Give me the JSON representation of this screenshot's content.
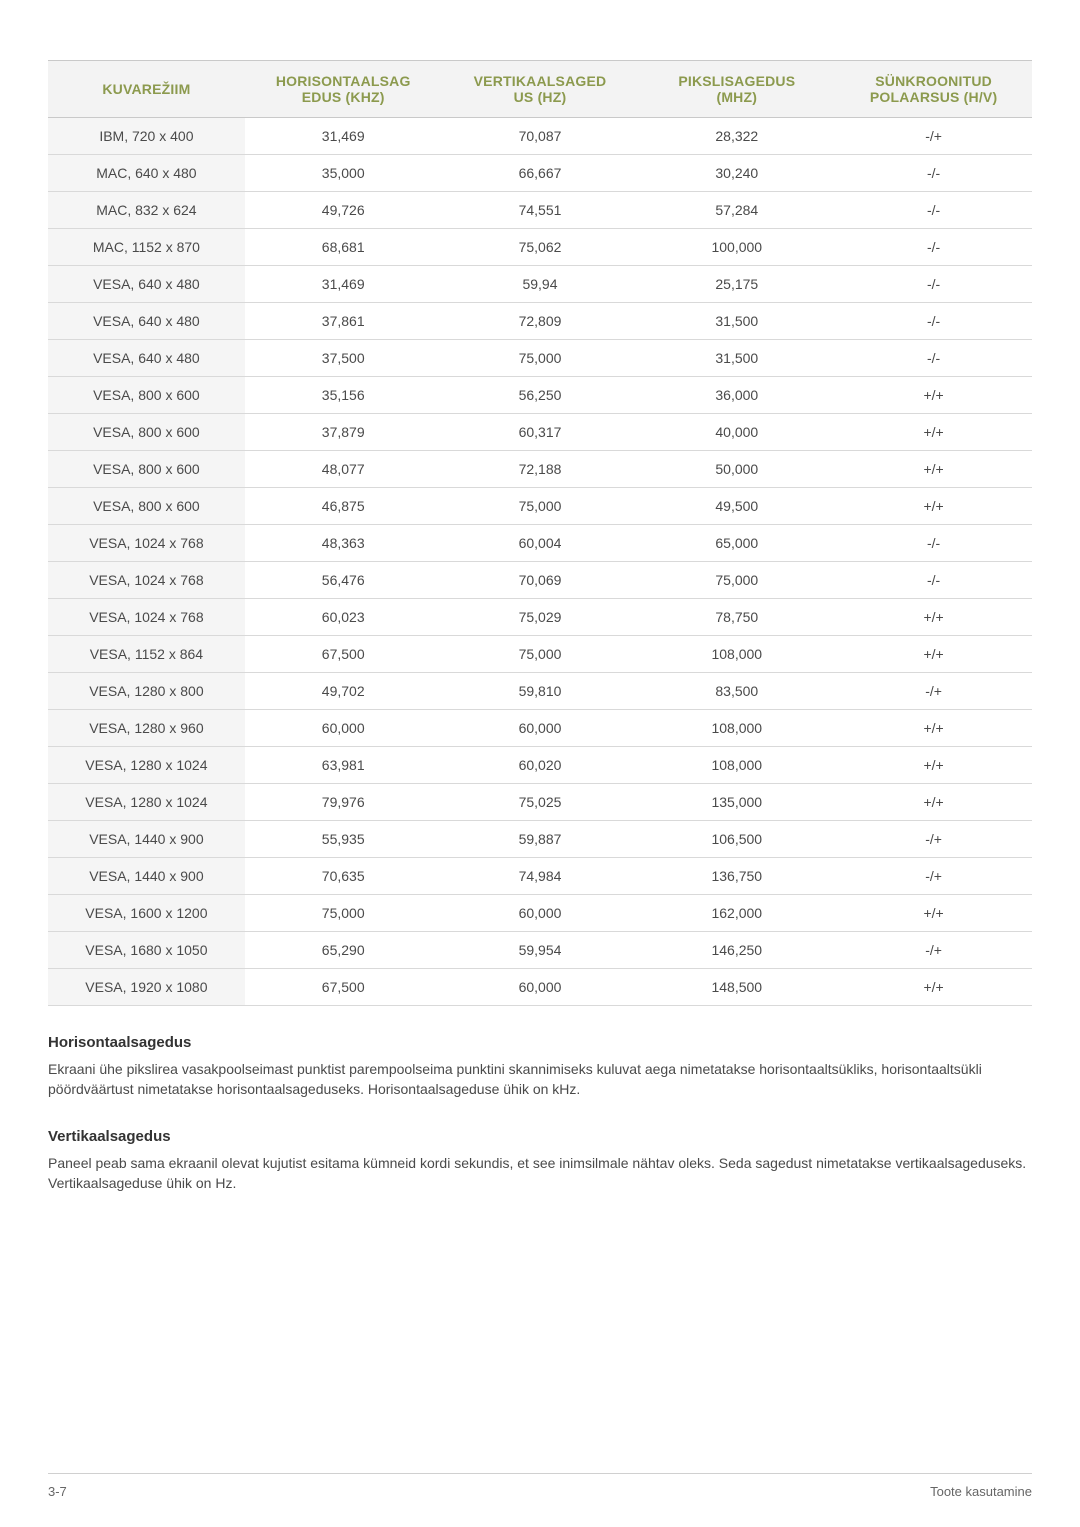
{
  "table": {
    "headers": {
      "col1_line1": "KUVAREŽIIM",
      "col2_line1": "HORISONTAALSAG",
      "col2_line2": "EDUS (KHZ)",
      "col3_line1": "VERTIKAALSAGED",
      "col3_line2": "US (HZ)",
      "col4_line1": "PIKSLISAGEDUS",
      "col4_line2": "(MHZ)",
      "col5_line1": "SÜNKROONITUD",
      "col5_line2": "POLAARSUS (H/V)"
    },
    "header_bg": "#f3f3f3",
    "header_color": "#8c9a4e",
    "border_color": "#d9d9d9",
    "firstcol_bg": "#f5f5f5",
    "rows": [
      [
        "IBM, 720 x 400",
        "31,469",
        "70,087",
        "28,322",
        "-/+"
      ],
      [
        "MAC, 640 x 480",
        "35,000",
        "66,667",
        "30,240",
        "-/-"
      ],
      [
        "MAC, 832 x 624",
        "49,726",
        "74,551",
        "57,284",
        "-/-"
      ],
      [
        "MAC, 1152 x 870",
        "68,681",
        "75,062",
        "100,000",
        "-/-"
      ],
      [
        "VESA, 640 x 480",
        "31,469",
        "59,94",
        "25,175",
        "-/-"
      ],
      [
        "VESA, 640 x 480",
        "37,861",
        "72,809",
        "31,500",
        "-/-"
      ],
      [
        "VESA, 640 x 480",
        "37,500",
        "75,000",
        "31,500",
        "-/-"
      ],
      [
        "VESA, 800 x 600",
        "35,156",
        "56,250",
        "36,000",
        "+/+"
      ],
      [
        "VESA, 800 x 600",
        "37,879",
        "60,317",
        "40,000",
        "+/+"
      ],
      [
        "VESA, 800 x 600",
        "48,077",
        "72,188",
        "50,000",
        "+/+"
      ],
      [
        "VESA, 800 x 600",
        "46,875",
        "75,000",
        "49,500",
        "+/+"
      ],
      [
        "VESA, 1024 x 768",
        "48,363",
        "60,004",
        "65,000",
        "-/-"
      ],
      [
        "VESA, 1024 x 768",
        "56,476",
        "70,069",
        "75,000",
        "-/-"
      ],
      [
        "VESA, 1024 x 768",
        "60,023",
        "75,029",
        "78,750",
        "+/+"
      ],
      [
        "VESA, 1152 x 864",
        "67,500",
        "75,000",
        "108,000",
        "+/+"
      ],
      [
        "VESA, 1280 x 800",
        "49,702",
        "59,810",
        "83,500",
        "-/+"
      ],
      [
        "VESA, 1280 x 960",
        "60,000",
        "60,000",
        "108,000",
        "+/+"
      ],
      [
        "VESA, 1280 x 1024",
        "63,981",
        "60,020",
        "108,000",
        "+/+"
      ],
      [
        "VESA, 1280 x 1024",
        "79,976",
        "75,025",
        "135,000",
        "+/+"
      ],
      [
        "VESA, 1440 x 900",
        "55,935",
        "59,887",
        "106,500",
        "-/+"
      ],
      [
        "VESA, 1440 x 900",
        "70,635",
        "74,984",
        "136,750",
        "-/+"
      ],
      [
        "VESA, 1600 x 1200",
        "75,000",
        "60,000",
        "162,000",
        "+/+"
      ],
      [
        "VESA, 1680 x 1050",
        "65,290",
        "59,954",
        "146,250",
        "-/+"
      ],
      [
        "VESA, 1920 x 1080",
        "67,500",
        "60,000",
        "148,500",
        "+/+"
      ]
    ]
  },
  "sections": {
    "h1_title": "Horisontaalsagedus",
    "h1_body": "Ekraani ühe pikslirea vasakpoolseimast punktist parempoolseima punktini skannimiseks kuluvat aega nimetatakse horisontaaltsükliks, horisontaaltsükli pöördväärtust nimetatakse horisontaalsageduseks. Horisontaalsageduse ühik on kHz.",
    "h2_title": "Vertikaalsagedus",
    "h2_body": "Paneel peab sama ekraanil olevat kujutist esitama kümneid kordi sekundis, et see inimsilmale nähtav oleks. Seda sagedust nimetatakse vertikaalsageduseks. Vertikaalsageduse ühik on Hz."
  },
  "footer": {
    "left": "3-7",
    "right": "Toote kasutamine"
  }
}
